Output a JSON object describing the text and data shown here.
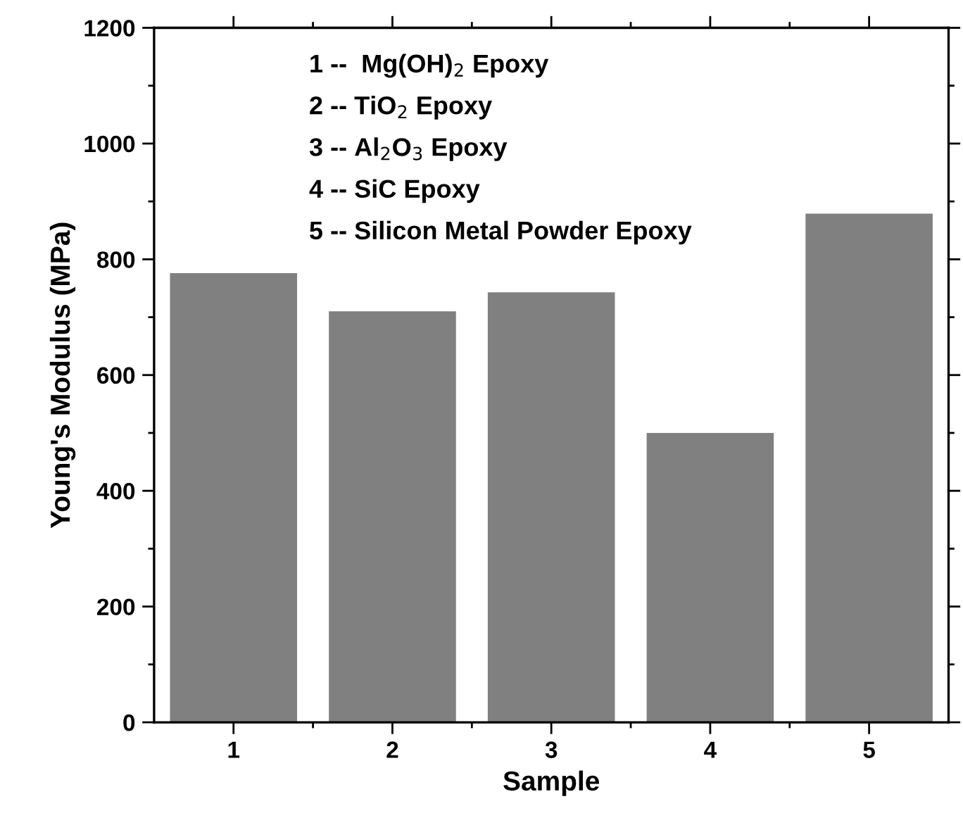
{
  "chart_data": {
    "type": "bar",
    "xlabel": "Sample",
    "ylabel": "Young's Modulus (MPa)",
    "categories": [
      "1",
      "2",
      "3",
      "4",
      "5"
    ],
    "values": [
      776,
      710,
      743,
      500,
      879
    ],
    "color": "#808080",
    "ylim": [
      0,
      1200
    ],
    "yticks": [
      0,
      200,
      400,
      600,
      800,
      1000,
      1200
    ],
    "annotations": [
      "1 --  Mg(OH)$_{2}$ Epoxy",
      "2 -- TiO$_{2}$ Epoxy",
      "3 -- Al$_{2}$O$_{3}$ Epoxy",
      "4 -- SiC Epoxy",
      "5 -- Silicon Metal Powder Epoxy"
    ]
  }
}
